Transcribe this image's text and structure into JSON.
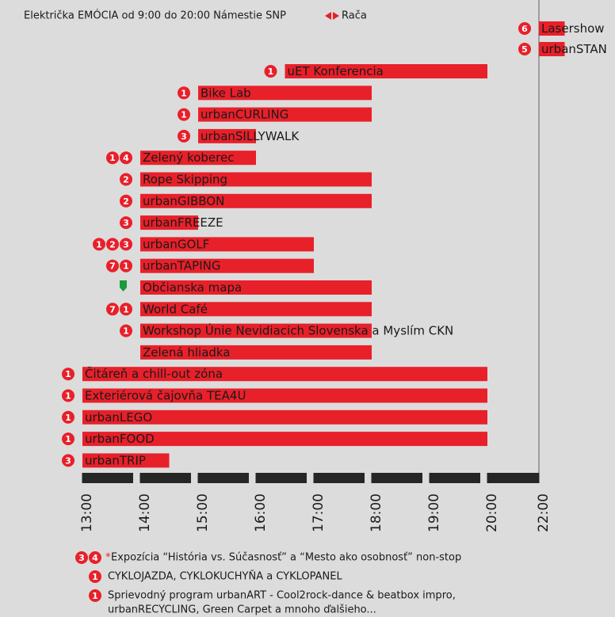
{
  "chart_data": {
    "type": "gantt",
    "title": "Električka EMÓCIA od 9:00 do 20:00 Námestie SNP",
    "title_end": "Rača",
    "color": "#e8202a",
    "tasks": [
      {
        "name": "Lasershow",
        "start": 22,
        "end": 23,
        "badges": [
          "6"
        ]
      },
      {
        "name": "urbanSTAN",
        "start": 22,
        "end": 23,
        "badges": [
          "5"
        ]
      },
      {
        "name": "uET Konferencia",
        "start": 16.5,
        "end": 20,
        "badges": [
          "1"
        ]
      },
      {
        "name": "Bike Lab",
        "start": 15,
        "end": 18,
        "badges": [
          "1"
        ]
      },
      {
        "name": "urbanCURLING",
        "start": 15,
        "end": 18,
        "badges": [
          "1"
        ]
      },
      {
        "name": "urbanSILLYWALK",
        "start": 15,
        "end": 16,
        "badges": [
          "3"
        ]
      },
      {
        "name": "Zelený koberec",
        "start": 14,
        "end": 16,
        "badges": [
          "1",
          "4"
        ]
      },
      {
        "name": "Rope Skipping",
        "start": 14,
        "end": 18,
        "badges": [
          "2"
        ]
      },
      {
        "name": "urbanGIBBON",
        "start": 14,
        "end": 18,
        "badges": [
          "2"
        ]
      },
      {
        "name": "urbanFREEZE",
        "start": 14,
        "end": 15,
        "badges": [
          "3"
        ]
      },
      {
        "name": "urbanGOLF",
        "start": 14,
        "end": 17,
        "badges": [
          "1",
          "2",
          "3"
        ]
      },
      {
        "name": "urbanTAPING",
        "start": 14,
        "end": 17,
        "badges": [
          "7",
          "1"
        ]
      },
      {
        "name": "Občianska mapa",
        "start": 14,
        "end": 18,
        "badges": [],
        "pin": true
      },
      {
        "name": "World Café",
        "start": 14,
        "end": 18,
        "badges": [
          "7",
          "1"
        ]
      },
      {
        "name": "Workshop Únie Nevidiacich Slovenska a Myslím CKN",
        "start": 14,
        "end": 18,
        "badges": [
          "1"
        ]
      },
      {
        "name": "Zelená hliadka",
        "start": 14,
        "end": 18,
        "badges": []
      },
      {
        "name": "Čitáreň a chill-out zóna",
        "start": 13,
        "end": 20,
        "badges": [
          "1"
        ]
      },
      {
        "name": "Exteriérová čajovňa TEA4U",
        "start": 13,
        "end": 20,
        "badges": [
          "1"
        ]
      },
      {
        "name": "urbanLEGO",
        "start": 13,
        "end": 20,
        "badges": [
          "1"
        ]
      },
      {
        "name": "urbanFOOD",
        "start": 13,
        "end": 20,
        "badges": [
          "1"
        ]
      },
      {
        "name": "urbanTRIP",
        "start": 13,
        "end": 14.5,
        "badges": [
          "3"
        ]
      }
    ],
    "xticks": [
      {
        "value": 13,
        "label": "13:00"
      },
      {
        "value": 14,
        "label": "14:00"
      },
      {
        "value": 15,
        "label": "15:00"
      },
      {
        "value": 16,
        "label": "16:00"
      },
      {
        "value": 17,
        "label": "17:00"
      },
      {
        "value": 18,
        "label": "18:00"
      },
      {
        "value": 19,
        "label": "19:00"
      },
      {
        "value": 20,
        "label": "20:00"
      },
      {
        "value": 22,
        "label": "22:00"
      }
    ],
    "notes": [
      {
        "badges": [
          "3",
          "4"
        ],
        "mark": "*",
        "lines": [
          "Expozícia “História vs. Súčasnosť” a “Mesto ako osobnosť” non-stop"
        ]
      },
      {
        "badges": [
          "1"
        ],
        "lines": [
          "CYKLOJAZDA, CYKLOKUCHYŇA a CYKLOPANEL"
        ]
      },
      {
        "badges": [
          "1"
        ],
        "lines": [
          "Sprievodný program urbanART - Cool2rock-dance & beatbox impro,",
          "urbanRECYCLING, Green Carpet a mnoho ďalšieho..."
        ]
      }
    ]
  }
}
